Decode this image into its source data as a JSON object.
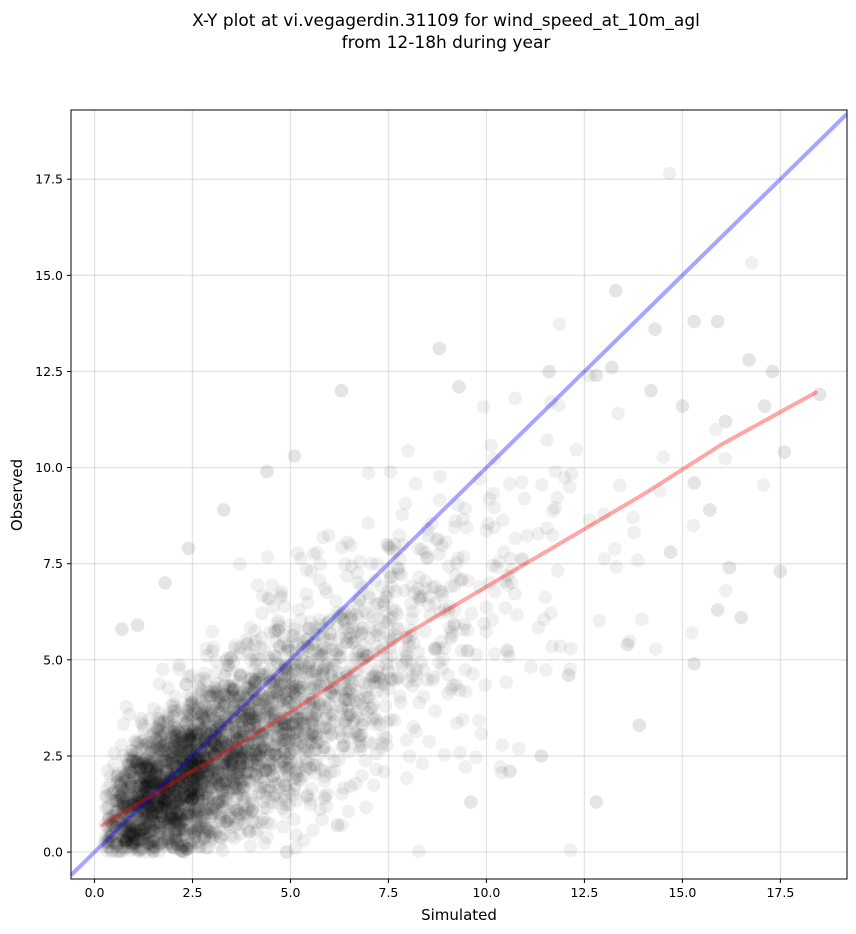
{
  "chart_data": {
    "type": "scatter",
    "title": [
      "X-Y plot at vi.vegagerdin.31109 for wind_speed_at_10m_agl",
      "from 12-18h during year"
    ],
    "xlabel": "Simulated",
    "ylabel": "Observed",
    "xlim": [
      -0.6,
      19.2
    ],
    "ylim": [
      -0.7,
      19.3
    ],
    "xticks": [
      "0.0",
      "2.5",
      "5.0",
      "7.5",
      "10.0",
      "12.5",
      "15.0",
      "17.5"
    ],
    "yticks": [
      "0.0",
      "2.5",
      "5.0",
      "7.5",
      "10.0",
      "12.5",
      "15.0",
      "17.5"
    ],
    "grid": true,
    "point_color": "#000000",
    "point_alpha": 0.06,
    "one_to_one_line": {
      "color": "#0000ff",
      "alpha": 0.35,
      "points": [
        [
          -0.6,
          -0.6
        ],
        [
          19.2,
          19.2
        ]
      ]
    },
    "fit_line": {
      "color": "#ff0000",
      "alpha": 0.35,
      "points": [
        [
          0.2,
          0.7
        ],
        [
          2.0,
          1.8
        ],
        [
          4.0,
          3.0
        ],
        [
          6.0,
          4.3
        ],
        [
          8.0,
          5.7
        ],
        [
          10.0,
          6.9
        ],
        [
          12.0,
          8.1
        ],
        [
          14.0,
          9.3
        ],
        [
          16.0,
          10.6
        ],
        [
          18.4,
          11.95
        ]
      ]
    },
    "outlier_points": [
      [
        13.3,
        14.6
      ],
      [
        8.8,
        13.1
      ],
      [
        15.3,
        13.8
      ],
      [
        15.9,
        13.8
      ],
      [
        14.3,
        13.6
      ],
      [
        6.3,
        12.0
      ],
      [
        9.3,
        12.1
      ],
      [
        11.6,
        12.5
      ],
      [
        12.8,
        12.4
      ],
      [
        13.2,
        12.6
      ],
      [
        14.2,
        12.0
      ],
      [
        16.7,
        12.8
      ],
      [
        17.3,
        12.5
      ],
      [
        18.5,
        11.9
      ],
      [
        17.6,
        10.4
      ],
      [
        17.5,
        7.3
      ],
      [
        16.5,
        6.1
      ],
      [
        15.9,
        6.3
      ],
      [
        15.3,
        4.9
      ],
      [
        13.9,
        3.3
      ],
      [
        12.8,
        1.3
      ],
      [
        0.7,
        5.8
      ],
      [
        1.1,
        5.9
      ],
      [
        2.4,
        7.9
      ],
      [
        4.4,
        9.9
      ],
      [
        5.1,
        10.3
      ],
      [
        3.3,
        8.9
      ],
      [
        17.1,
        11.6
      ],
      [
        16.1,
        11.2
      ],
      [
        15.7,
        8.9
      ],
      [
        14.7,
        7.8
      ],
      [
        12.1,
        4.6
      ],
      [
        11.4,
        2.5
      ],
      [
        10.6,
        2.1
      ],
      [
        9.6,
        1.3
      ],
      [
        6.2,
        0.7
      ],
      [
        4.9,
        0.0
      ],
      [
        1.8,
        7.0
      ],
      [
        16.2,
        7.4
      ],
      [
        15.3,
        9.6
      ],
      [
        15.0,
        11.6
      ],
      [
        13.6,
        5.4
      ]
    ]
  }
}
